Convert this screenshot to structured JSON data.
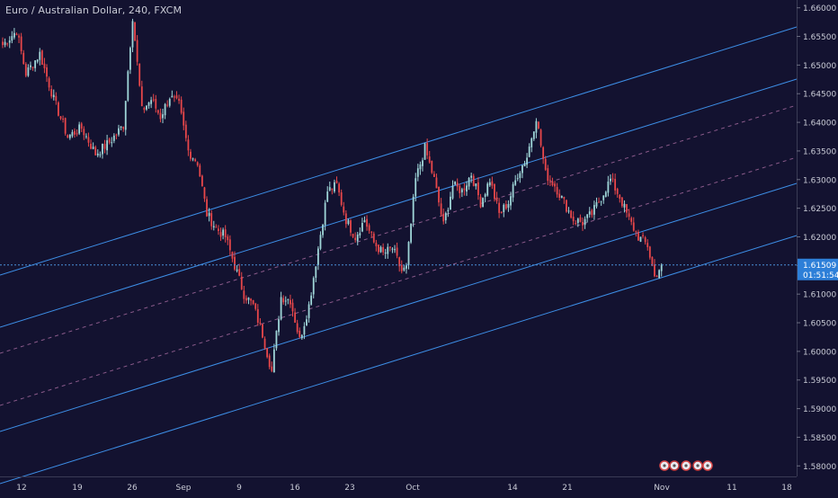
{
  "chart_data": {
    "type": "candlestick",
    "title": "Euro / Australian Dollar, 240, FXCM",
    "ylim": [
      1.576,
      1.6605
    ],
    "y_ticks": [
      "1.66000",
      "1.65500",
      "1.65000",
      "1.64500",
      "1.64000",
      "1.63500",
      "1.63000",
      "1.62500",
      "1.62000",
      "1.61500",
      "1.61000",
      "1.60500",
      "1.60000",
      "1.59500",
      "1.59000",
      "1.58500",
      "1.58000"
    ],
    "x_ticks": [
      "12",
      "19",
      "26",
      "Sep",
      "9",
      "16",
      "23",
      "Oct",
      "14",
      "21",
      "Nov",
      "11",
      "18"
    ],
    "last_price": 1.61509,
    "last_price_label": "1.61509",
    "countdown": "01:51:54",
    "grid": false,
    "colors": {
      "background": "#131230",
      "up": "#9fd6d8",
      "down": "#e8474a",
      "channel_line": "#3d8ee6",
      "midline": "#8a5a8a",
      "price_line": "#4a90d9",
      "price_badge": "#2d7fd8",
      "axis_text": "#c9cbd6"
    },
    "swing_path": [
      [
        0,
        1.6535
      ],
      [
        6,
        1.656
      ],
      [
        10,
        1.6485
      ],
      [
        16,
        1.652
      ],
      [
        22,
        1.644
      ],
      [
        28,
        1.6375
      ],
      [
        34,
        1.639
      ],
      [
        40,
        1.6345
      ],
      [
        46,
        1.6365
      ],
      [
        52,
        1.6395
      ],
      [
        56,
        1.6585
      ],
      [
        60,
        1.642
      ],
      [
        64,
        1.644
      ],
      [
        68,
        1.641
      ],
      [
        72,
        1.6445
      ],
      [
        76,
        1.643
      ],
      [
        80,
        1.635
      ],
      [
        84,
        1.633
      ],
      [
        88,
        1.624
      ],
      [
        92,
        1.6215
      ],
      [
        96,
        1.62
      ],
      [
        100,
        1.615
      ],
      [
        104,
        1.61
      ],
      [
        108,
        1.608
      ],
      [
        112,
        1.603
      ],
      [
        116,
        1.5965
      ],
      [
        120,
        1.6095
      ],
      [
        124,
        1.609
      ],
      [
        128,
        1.602
      ],
      [
        132,
        1.608
      ],
      [
        136,
        1.618
      ],
      [
        140,
        1.628
      ],
      [
        144,
        1.629
      ],
      [
        148,
        1.623
      ],
      [
        152,
        1.62
      ],
      [
        156,
        1.623
      ],
      [
        160,
        1.619
      ],
      [
        164,
        1.617
      ],
      [
        168,
        1.618
      ],
      [
        172,
        1.614
      ],
      [
        174,
        1.6145
      ],
      [
        178,
        1.63
      ],
      [
        182,
        1.6355
      ],
      [
        186,
        1.63
      ],
      [
        190,
        1.622
      ],
      [
        194,
        1.629
      ],
      [
        198,
        1.628
      ],
      [
        202,
        1.631
      ],
      [
        206,
        1.626
      ],
      [
        210,
        1.63
      ],
      [
        214,
        1.624
      ],
      [
        218,
        1.626
      ],
      [
        222,
        1.631
      ],
      [
        226,
        1.634
      ],
      [
        230,
        1.641
      ],
      [
        234,
        1.631
      ],
      [
        238,
        1.629
      ],
      [
        242,
        1.626
      ],
      [
        246,
        1.623
      ],
      [
        250,
        1.6225
      ],
      [
        254,
        1.624
      ],
      [
        258,
        1.627
      ],
      [
        262,
        1.63
      ],
      [
        266,
        1.627
      ],
      [
        270,
        1.623
      ],
      [
        274,
        1.62
      ],
      [
        278,
        1.6185
      ],
      [
        281,
        1.613
      ],
      [
        284,
        1.6151
      ]
    ]
  }
}
